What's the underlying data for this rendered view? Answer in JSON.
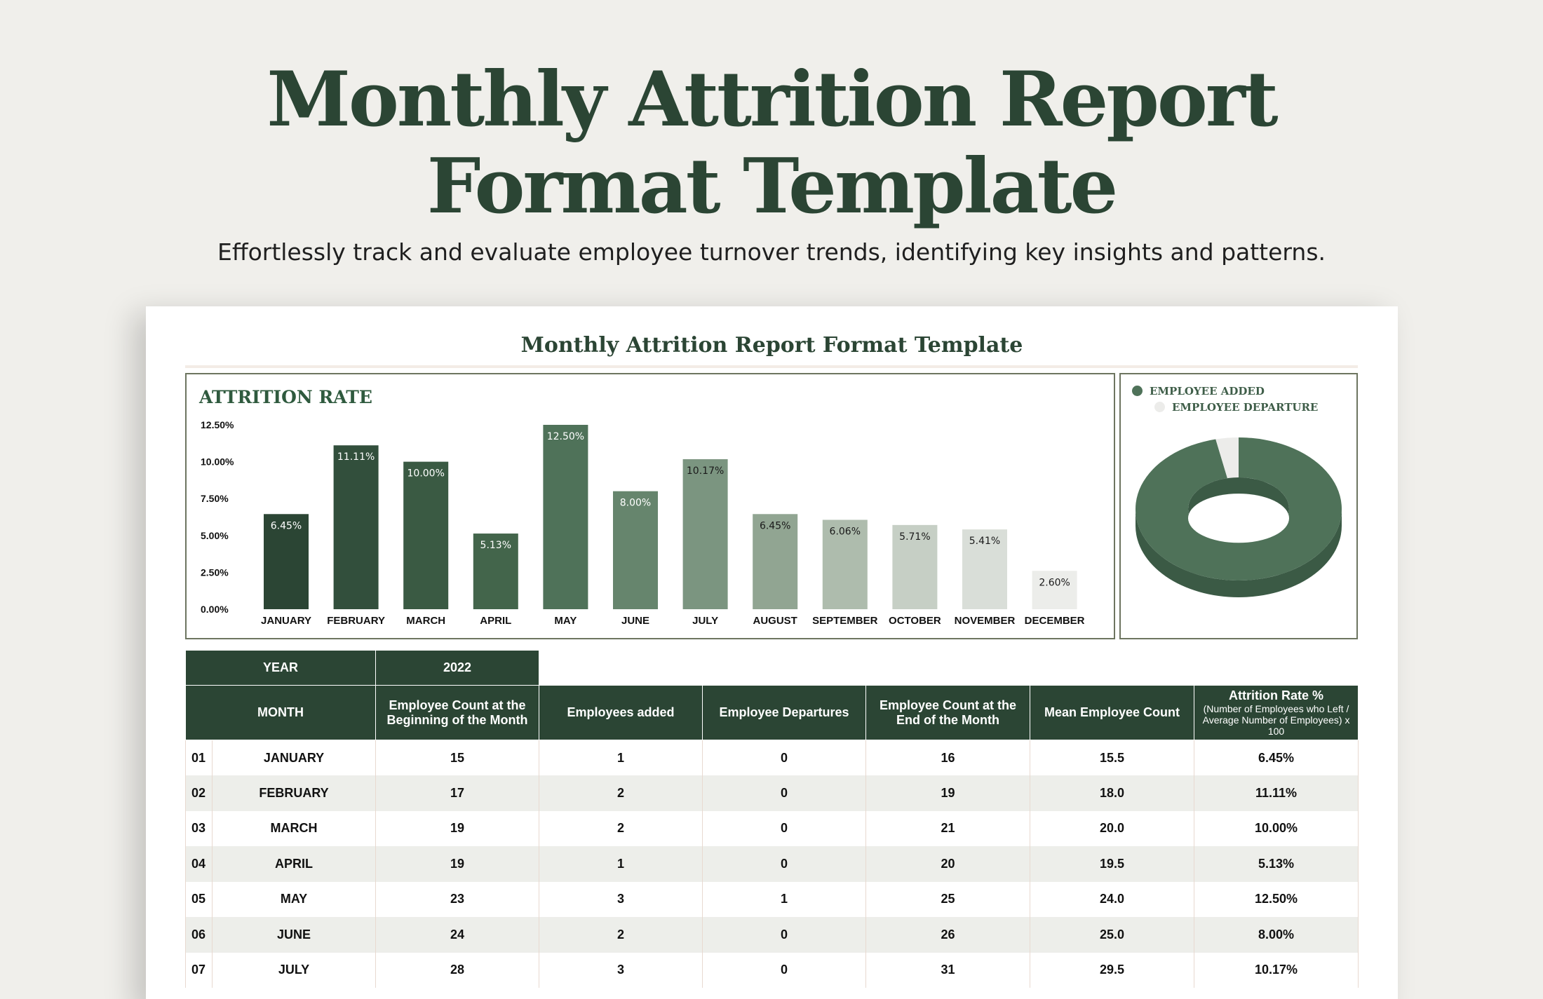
{
  "hero": {
    "title_line1": "Monthly Attrition Report",
    "title_line2": "Format Template",
    "subtitle": "Effortlessly track and evaluate employee turnover trends, identifying key insights and patterns."
  },
  "sheet": {
    "title": "Monthly Attrition Report Format Template"
  },
  "colors": {
    "dark_green": "#2b4534",
    "accent_green": "#4f7259",
    "light_gray": "#ecedea"
  },
  "chart_data": [
    {
      "type": "bar",
      "title": "ATTRITION RATE",
      "categories": [
        "JANUARY",
        "FEBRUARY",
        "MARCH",
        "APRIL",
        "MAY",
        "JUNE",
        "JULY",
        "AUGUST",
        "SEPTEMBER",
        "OCTOBER",
        "NOVEMBER",
        "DECEMBER"
      ],
      "values": [
        6.45,
        11.11,
        10.0,
        5.13,
        12.5,
        8.0,
        10.17,
        6.45,
        6.06,
        5.71,
        5.41,
        2.6
      ],
      "value_labels": [
        "6.45%",
        "11.11%",
        "10.00%",
        "5.13%",
        "12.50%",
        "8.00%",
        "10.17%",
        "6.45%",
        "6.06%",
        "5.71%",
        "5.41%",
        "2.60%"
      ],
      "bar_colors": [
        "#2b4534",
        "#324f3c",
        "#3a5a43",
        "#43654b",
        "#4f7259",
        "#66856d",
        "#7b9580",
        "#91a592",
        "#aebcad",
        "#c6cfc5",
        "#d9ded8",
        "#ecedea"
      ],
      "label_colors": [
        "#ffffff",
        "#ffffff",
        "#ffffff",
        "#ffffff",
        "#ffffff",
        "#ffffff",
        "#1a1a1a",
        "#1a1a1a",
        "#1a1a1a",
        "#1a1a1a",
        "#1a1a1a",
        "#1a1a1a"
      ],
      "yticks": [
        "0.00%",
        "2.50%",
        "5.00%",
        "7.50%",
        "10.00%",
        "12.50%"
      ],
      "ytick_values": [
        0,
        2.5,
        5,
        7.5,
        10,
        12.5
      ],
      "ylim": [
        0,
        12.5
      ],
      "grid": false
    },
    {
      "type": "pie",
      "style": "3d-donut",
      "labels": [
        "EMPLOYEE ADDED",
        "EMPLOYEE DEPARTURE"
      ],
      "values": [
        27,
        1
      ],
      "colors": [
        "#4f7259",
        "#ececea"
      ],
      "legend": "top-left"
    }
  ],
  "table": {
    "year_label": "YEAR",
    "year_value": "2022",
    "headers": {
      "month": "MONTH",
      "begin": "Employee Count at the Beginning of the Month",
      "added": "Employees added",
      "departures": "Employee Departures",
      "end": "Employee Count at the End of the Month",
      "mean": "Mean Employee Count",
      "rate_title": "Attrition Rate %",
      "rate_formula": "(Number of Employees who Left / Average Number of Employees) x 100"
    },
    "rows": [
      {
        "num": "01",
        "month": "JANUARY",
        "begin": "15",
        "added": "1",
        "dep": "0",
        "end": "16",
        "mean": "15.5",
        "rate": "6.45%"
      },
      {
        "num": "02",
        "month": "FEBRUARY",
        "begin": "17",
        "added": "2",
        "dep": "0",
        "end": "19",
        "mean": "18.0",
        "rate": "11.11%"
      },
      {
        "num": "03",
        "month": "MARCH",
        "begin": "19",
        "added": "2",
        "dep": "0",
        "end": "21",
        "mean": "20.0",
        "rate": "10.00%"
      },
      {
        "num": "04",
        "month": "APRIL",
        "begin": "19",
        "added": "1",
        "dep": "0",
        "end": "20",
        "mean": "19.5",
        "rate": "5.13%"
      },
      {
        "num": "05",
        "month": "MAY",
        "begin": "23",
        "added": "3",
        "dep": "1",
        "end": "25",
        "mean": "24.0",
        "rate": "12.50%"
      },
      {
        "num": "06",
        "month": "JUNE",
        "begin": "24",
        "added": "2",
        "dep": "0",
        "end": "26",
        "mean": "25.0",
        "rate": "8.00%"
      },
      {
        "num": "07",
        "month": "JULY",
        "begin": "28",
        "added": "3",
        "dep": "0",
        "end": "31",
        "mean": "29.5",
        "rate": "10.17%"
      }
    ]
  }
}
